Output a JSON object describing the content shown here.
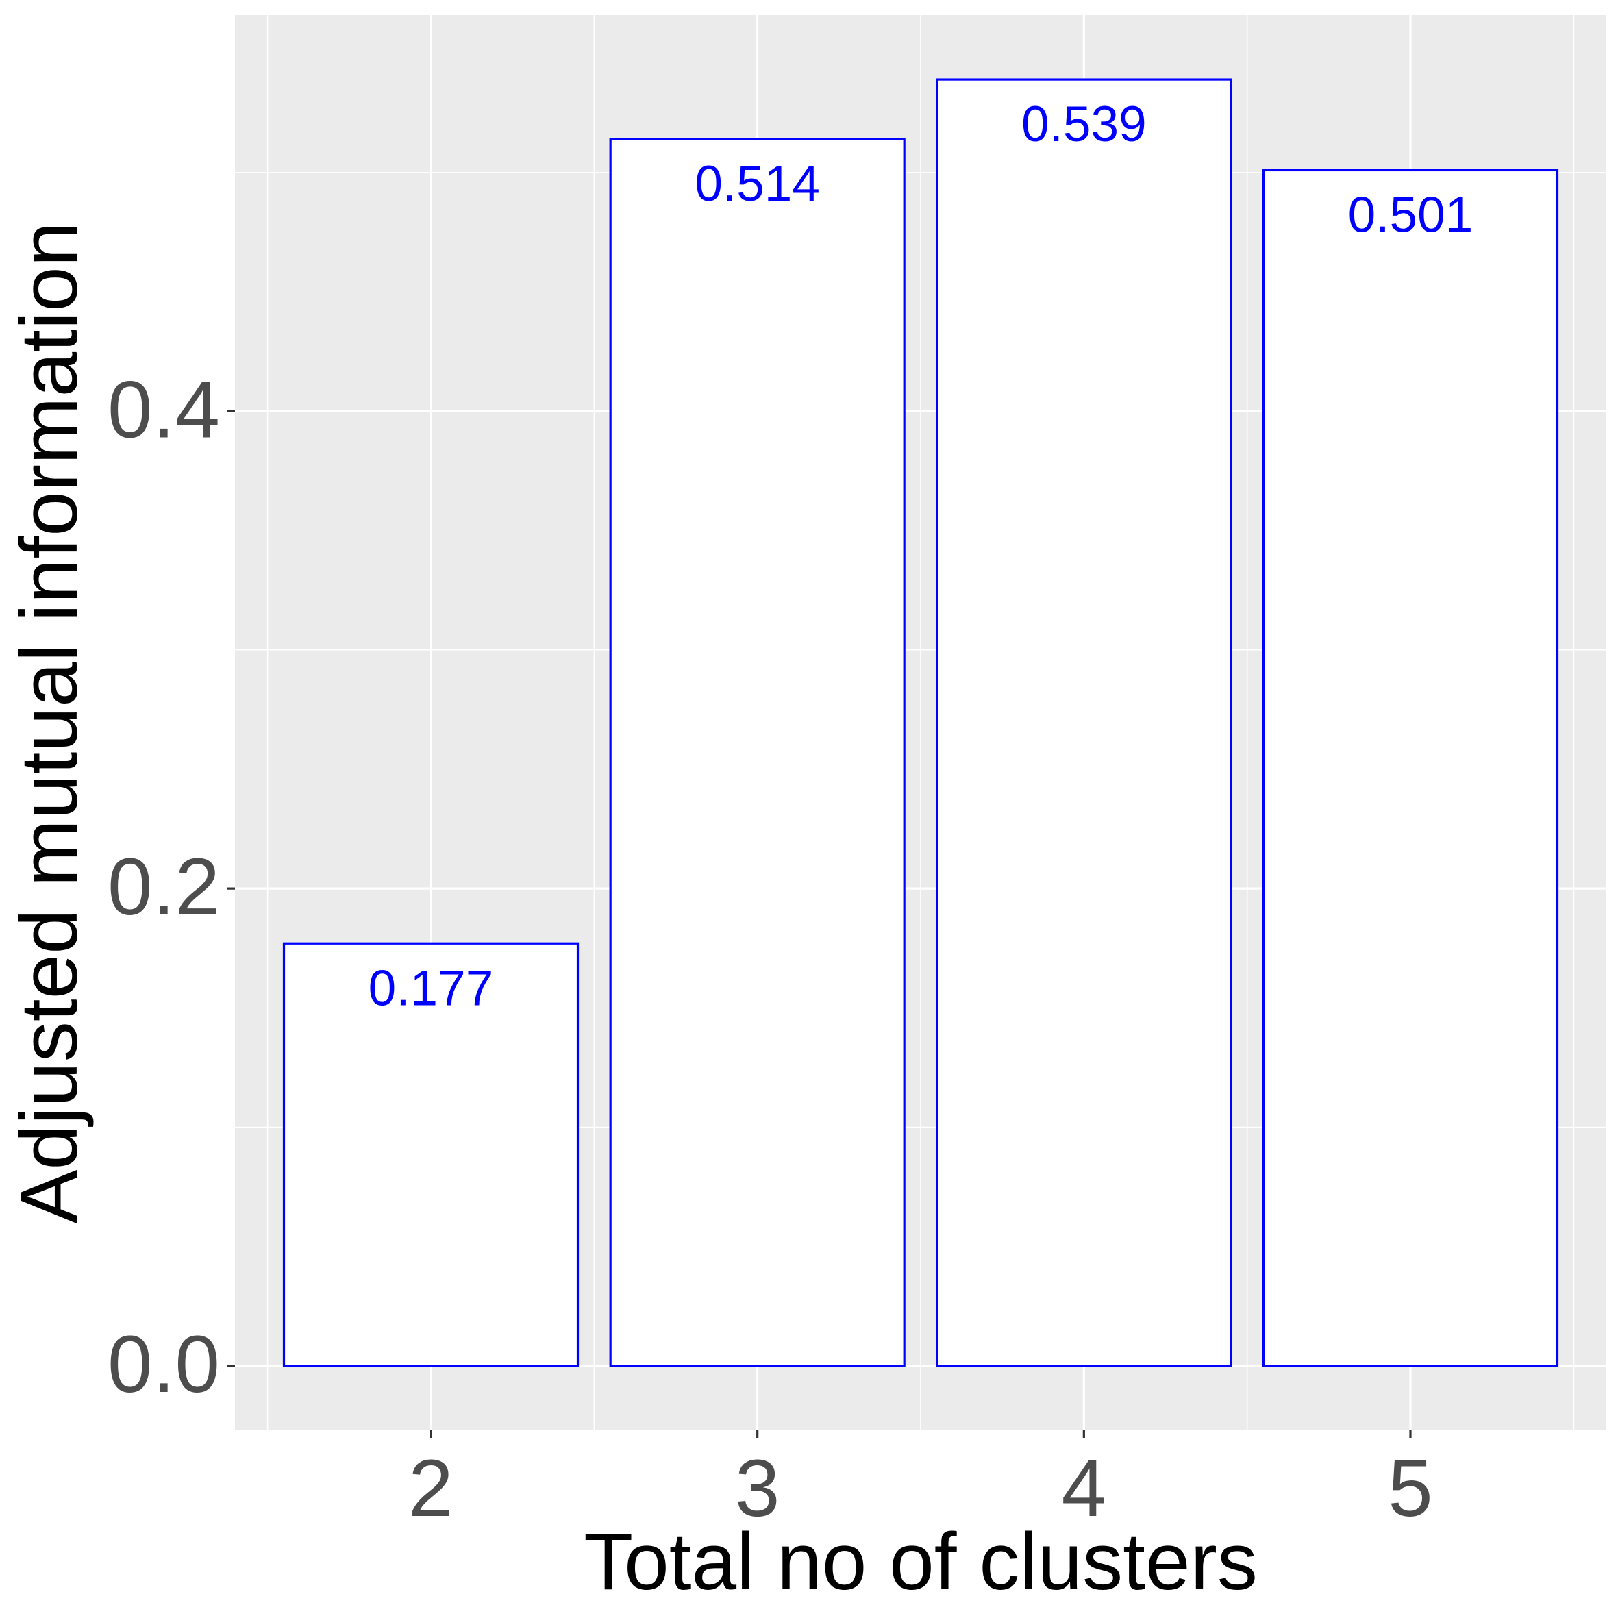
{
  "chart_data": {
    "type": "bar",
    "categories": [
      "2",
      "3",
      "4",
      "5"
    ],
    "values": [
      0.177,
      0.514,
      0.539,
      0.501
    ],
    "data_labels": [
      "0.177",
      "0.514",
      "0.539",
      "0.501"
    ],
    "title": "",
    "xlabel": "Total no of clusters",
    "ylabel": "Adjusted mutual information",
    "ylim": [
      -0.027,
      0.566
    ],
    "yticks": [
      0.0,
      0.2,
      0.4
    ],
    "ytick_labels": [
      "0.0",
      "0.2",
      "0.4"
    ],
    "grid": true,
    "legend": "none"
  },
  "colors": {
    "panel_background": "#ebebeb",
    "grid_major": "#ffffff",
    "grid_minor": "#ffffff",
    "bar_fill": "#ffffff",
    "bar_outline": "#0000ff",
    "data_label": "#0000ff",
    "tick_label": "#4d4d4d",
    "axis_title": "#000000",
    "tick_mark": "#333333"
  }
}
